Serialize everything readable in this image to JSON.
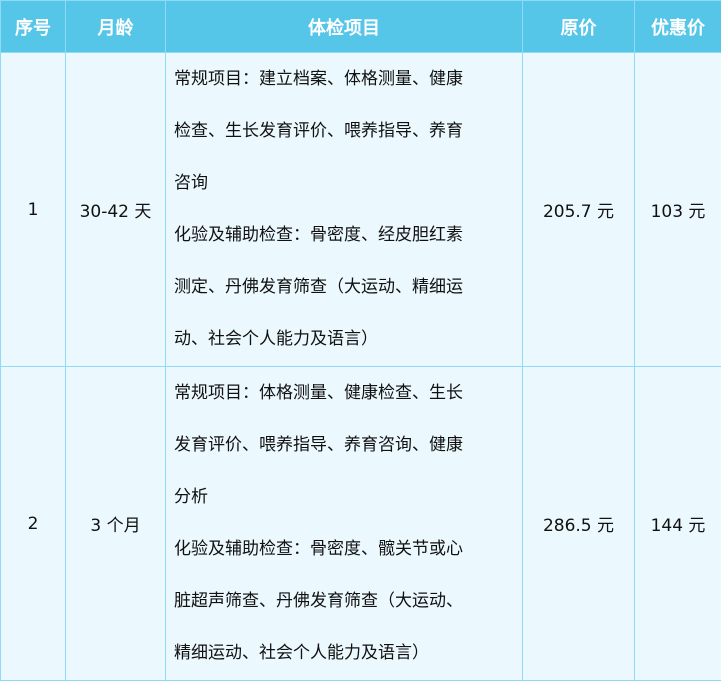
{
  "table": {
    "headers": [
      "序号",
      "月龄",
      "体检项目",
      "原价",
      "优惠价"
    ],
    "rows": [
      {
        "index": "1",
        "age": "30-42 天",
        "item_lines": [
          "常规项目：建立档案、体格测量、健康",
          "检查、生长发育评价、喂养指导、养育",
          "咨询",
          "化验及辅助检查：骨密度、经皮胆红素",
          "测定、丹佛发育筛查（大运动、精细运",
          "动、社会个人能力及语言）"
        ],
        "original_price": "205.7 元",
        "discount_price": "103 元"
      },
      {
        "index": "2",
        "age": "3 个月",
        "item_lines": [
          "常规项目：体格测量、健康检查、生长",
          "发育评价、喂养指导、养育咨询、健康",
          "分析",
          "化验及辅助检查：骨密度、髋关节或心",
          "脏超声筛查、丹佛发育筛查（大运动、",
          "精细运动、社会个人能力及语言）"
        ],
        "original_price": "286.5 元",
        "discount_price": "144 元"
      }
    ]
  },
  "colors": {
    "header_bg": "#55c5e8",
    "body_bg": "#ebf8fe",
    "border": "#8fdaf6"
  }
}
